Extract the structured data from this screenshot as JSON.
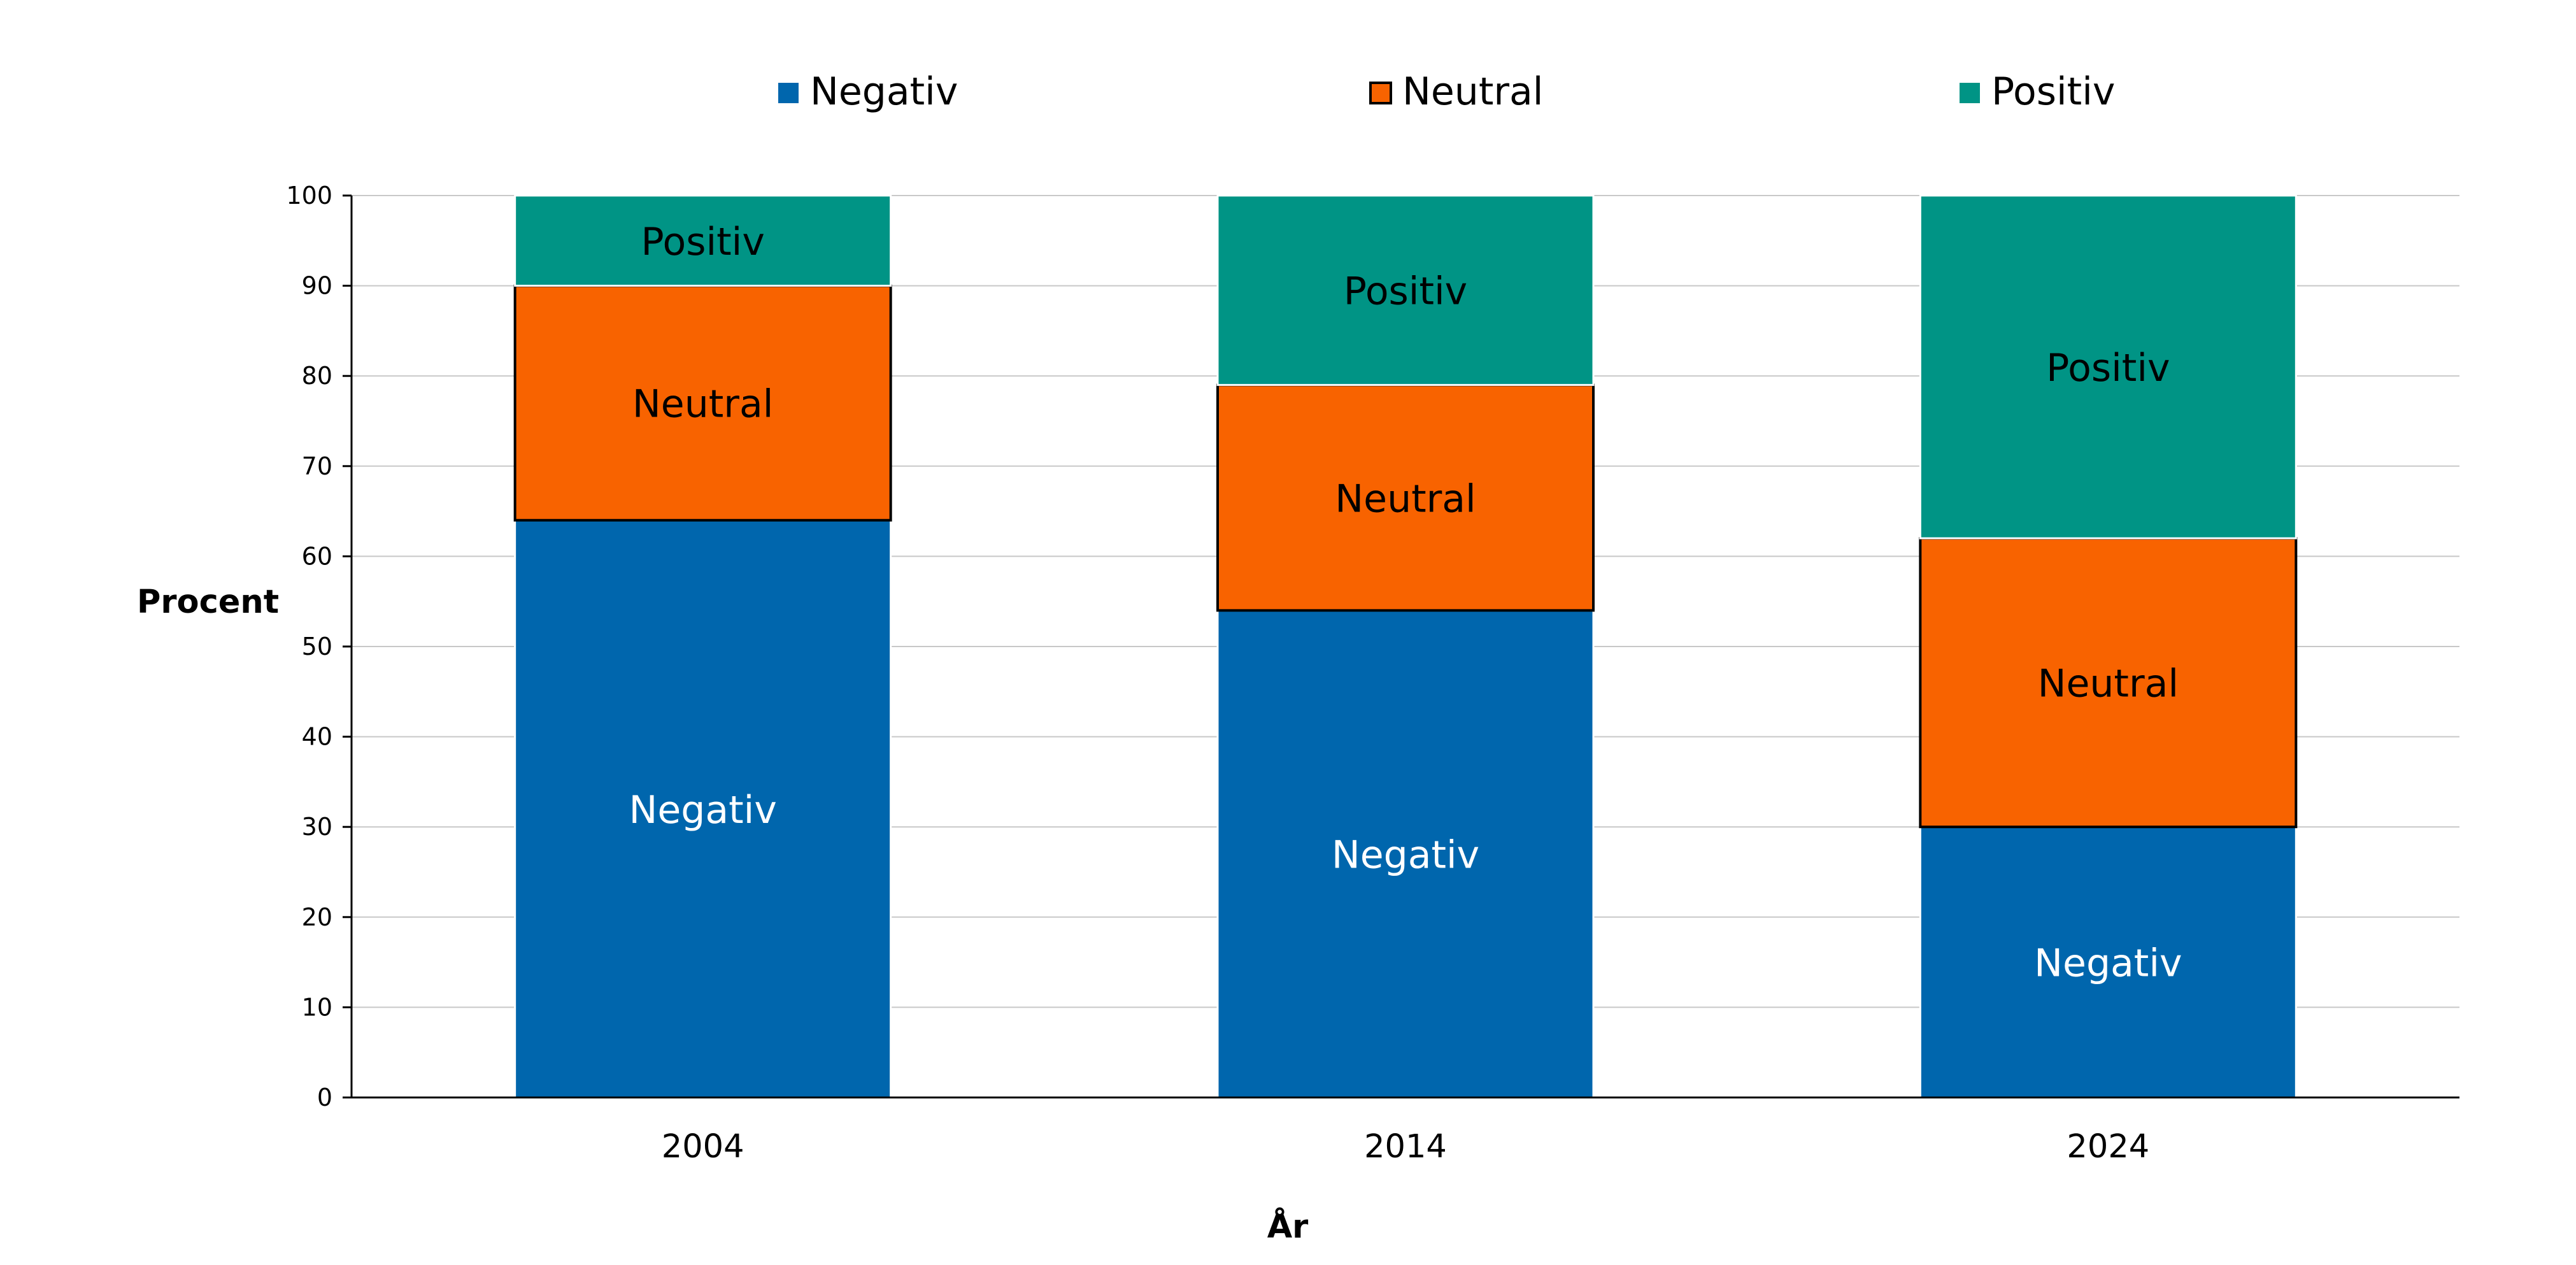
{
  "chart_data": {
    "type": "bar",
    "stacked": true,
    "categories": [
      "2004",
      "2014",
      "2024"
    ],
    "series": [
      {
        "name": "Negativ",
        "values": [
          64,
          54,
          30
        ],
        "color": "#0066AD",
        "label_color": "#ffffff"
      },
      {
        "name": "Neutral",
        "values": [
          26,
          25,
          32
        ],
        "color": "#F86300",
        "label_color": "#000000",
        "outlined": true
      },
      {
        "name": "Positiv",
        "values": [
          10,
          21,
          38
        ],
        "color": "#009485",
        "label_color": "#000000"
      }
    ],
    "xlabel": "År",
    "ylabel": "Procent",
    "ylim": [
      0,
      100
    ],
    "yticks": [
      "0",
      "10",
      "20",
      "30",
      "40",
      "50",
      "60",
      "70",
      "80",
      "90",
      "100"
    ],
    "grid": true,
    "gridline_color": "#c8c8c8",
    "legend_position": "top"
  }
}
